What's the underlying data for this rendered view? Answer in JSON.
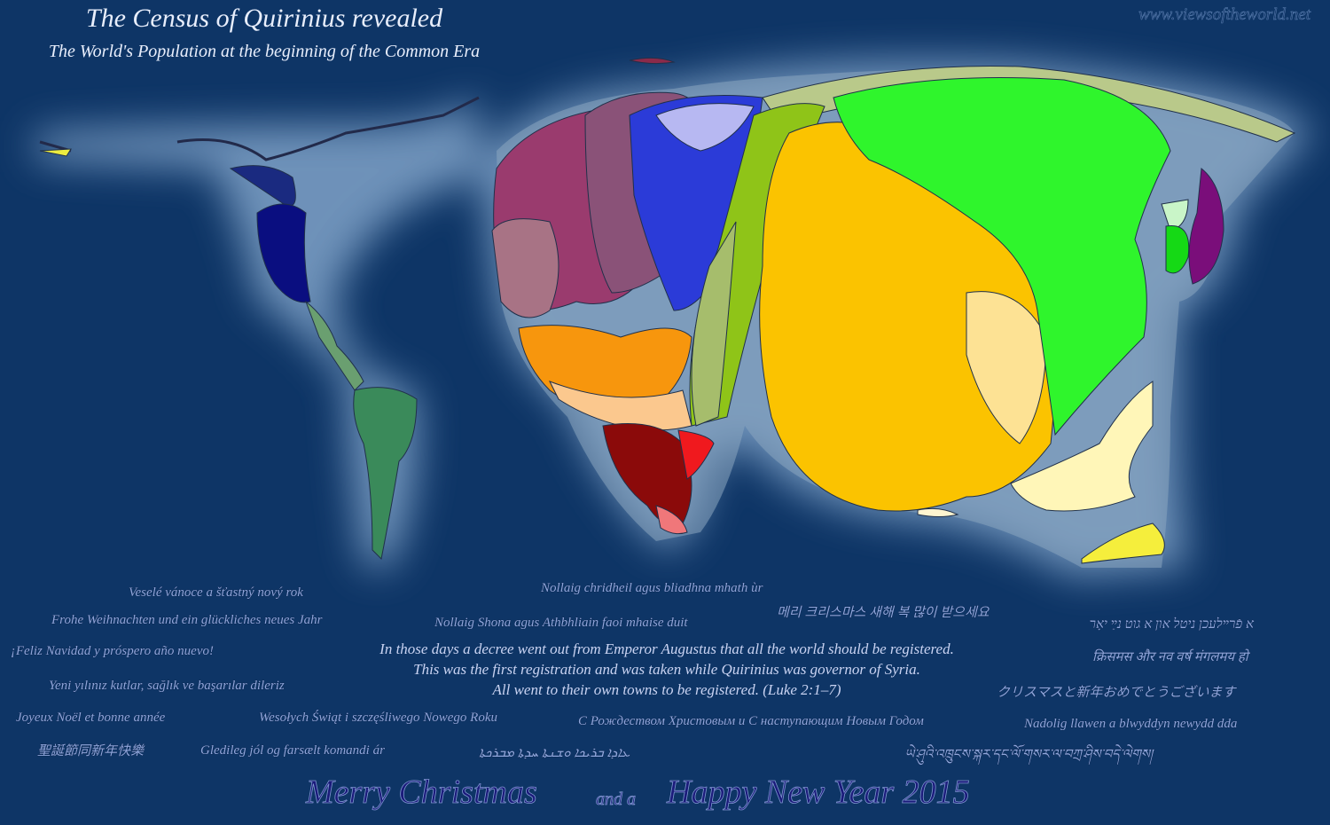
{
  "header": {
    "title": "The Census of Quirinius revealed",
    "subtitle": "The World's Population at the beginning of the Common Era",
    "website": "www.viewsoftheworld.net"
  },
  "greetings": [
    "Veselé vánoce a šťastný nový rok",
    "Frohe Weihnachten und ein glückliches neues Jahr",
    "¡Feliz Navidad y próspero año nuevo!",
    "Yeni yılınız kutlar, sağlık ve başarılar dileriz",
    "Joyeux Noël et bonne année",
    "聖誕節同新年快樂",
    "Wesołych Świąt i szczęśliwego Nowego Roku",
    "Gledileg jól og farsælt komandi ár",
    "Nollaig chridheil agus bliadhna mhath ùr",
    "Nollaig Shona agus Athbhliain faoi mhaise duit",
    "메리 크리스마스 새해 복 많이 받으세요",
    "א פֿרײלעכן ניטל און א גוט נײַ יאָר",
    "क्रिसमस और नव वर्ष मंगलमय हो",
    "クリスマスと新年おめでとうございます",
    "Nadolig llawen a blwyddyn newydd dda",
    "С Рождеством Христовым и С наступающим Новым Годом",
    "ܥܐܕܐ ܒܪܝܟܐ ܘܫܢܬܐ ܚܕܬܐ ܡܒܪܟܬܐ",
    "ཡེ་ཤུའི་འཁྲུངས་སྐར་དང་ལོ་གསར་ལ་བཀྲ་ཤིས་བདེ་ལེགས།"
  ],
  "quote": [
    "In those days a decree went out from Emperor Augustus that all the world should be registered.",
    "This was the first registration and was taken while Quirinius was governor of Syria.",
    "All went to their own towns to be registered. (Luke 2:1–7)"
  ],
  "footer": {
    "merry": "Merry Christmas",
    "connector": "and a",
    "happy": "Happy New Year 2015"
  }
}
